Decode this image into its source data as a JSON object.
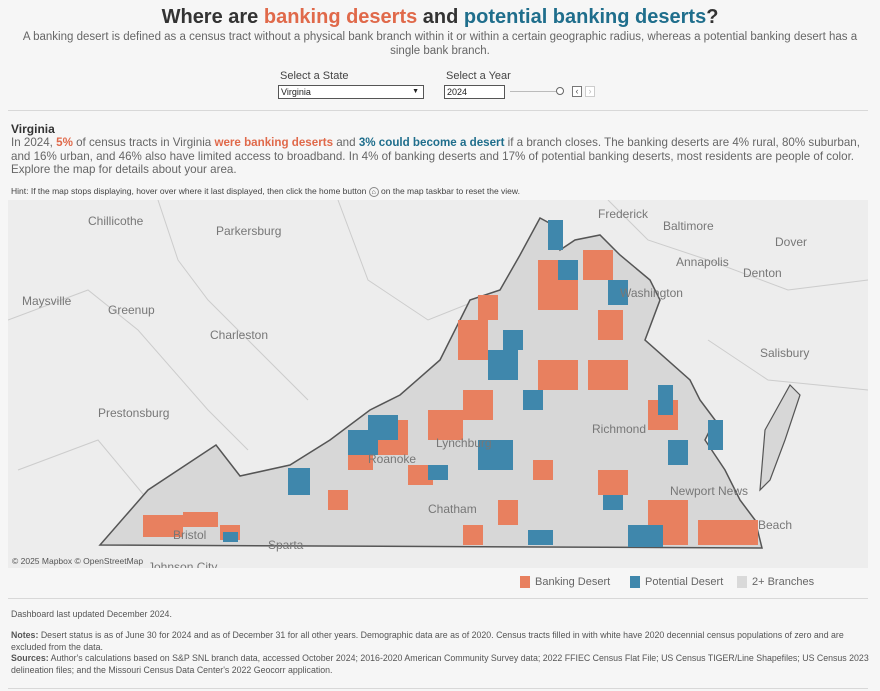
{
  "header": {
    "title_prefix": "Where are ",
    "title_desert": "banking deserts",
    "title_mid": " and ",
    "title_potential": "potential banking deserts",
    "title_suffix": "?",
    "subtitle": "A banking desert is defined as a census tract without a physical bank branch within it or within a certain geographic radius, whereas a potential banking desert has a single bank branch."
  },
  "controls": {
    "state_label": "Select a State",
    "state_value": "Virginia",
    "year_label": "Select a Year",
    "year_value": "2024",
    "prev": "‹",
    "next": "›"
  },
  "summary": {
    "state": "Virginia",
    "p1": "In 2024, ",
    "pct_desert": "5%",
    "p2": " of census tracts in Virginia ",
    "were_deserts": "were banking deserts",
    "p3": " and ",
    "could_become": "3% could become a desert",
    "p4": " if a branch closes. The banking deserts are 4% rural, 80% suburban, and 16% urban, and 46% also have limited access to broadband. In 4% of banking deserts and 17% of potential banking deserts, most residents are people of color. Explore the map for details about your area."
  },
  "hint": {
    "before": "Hint: If the map stops displaying, hover over where it last displayed, then click the home button ",
    "after": " on the map taskbar to reset the view.",
    "icon": "home-icon"
  },
  "map": {
    "cities": [
      "Chillicothe",
      "Parkersburg",
      "Frederick",
      "Baltimore",
      "Dover",
      "Annapolis",
      "Denton",
      "Washington",
      "Maysville",
      "Greenup",
      "Charleston",
      "Salisbury",
      "Prestonsburg",
      "Richmond",
      "Lynchburg",
      "Roanoke",
      "Newport News",
      "Beach",
      "Chatham",
      "Bristol",
      "Sparta",
      "Johnson City"
    ],
    "attribution": "© 2025 Mapbox  © OpenStreetMap"
  },
  "legend": [
    {
      "label": "Banking Desert",
      "color": "#e8805f"
    },
    {
      "label": "Potential Desert",
      "color": "#3f87ac"
    },
    {
      "label": "2+ Branches",
      "color": "#d9d9d9"
    }
  ],
  "footer": {
    "updated": "Dashboard last updated December 2024.",
    "notes_label": "Notes:",
    "notes": " Desert status is as of June 30 for 2024 and as of December 31 for all other years. Demographic data are as of 2020. Census tracts filled in with white have 2020 decennial census populations of zero and are excluded from the data.",
    "sources_label": "Sources:",
    "sources": " Author's calculations based on S&P SNL branch data, accessed October 2024; 2016-2020 American Community Survey data; 2022 FFIEC Census Flat File; US Census TIGER/Line Shapefiles; US Census 2023 delineation files; and the Missouri Census Data Center's 2022 Geocorr application."
  }
}
